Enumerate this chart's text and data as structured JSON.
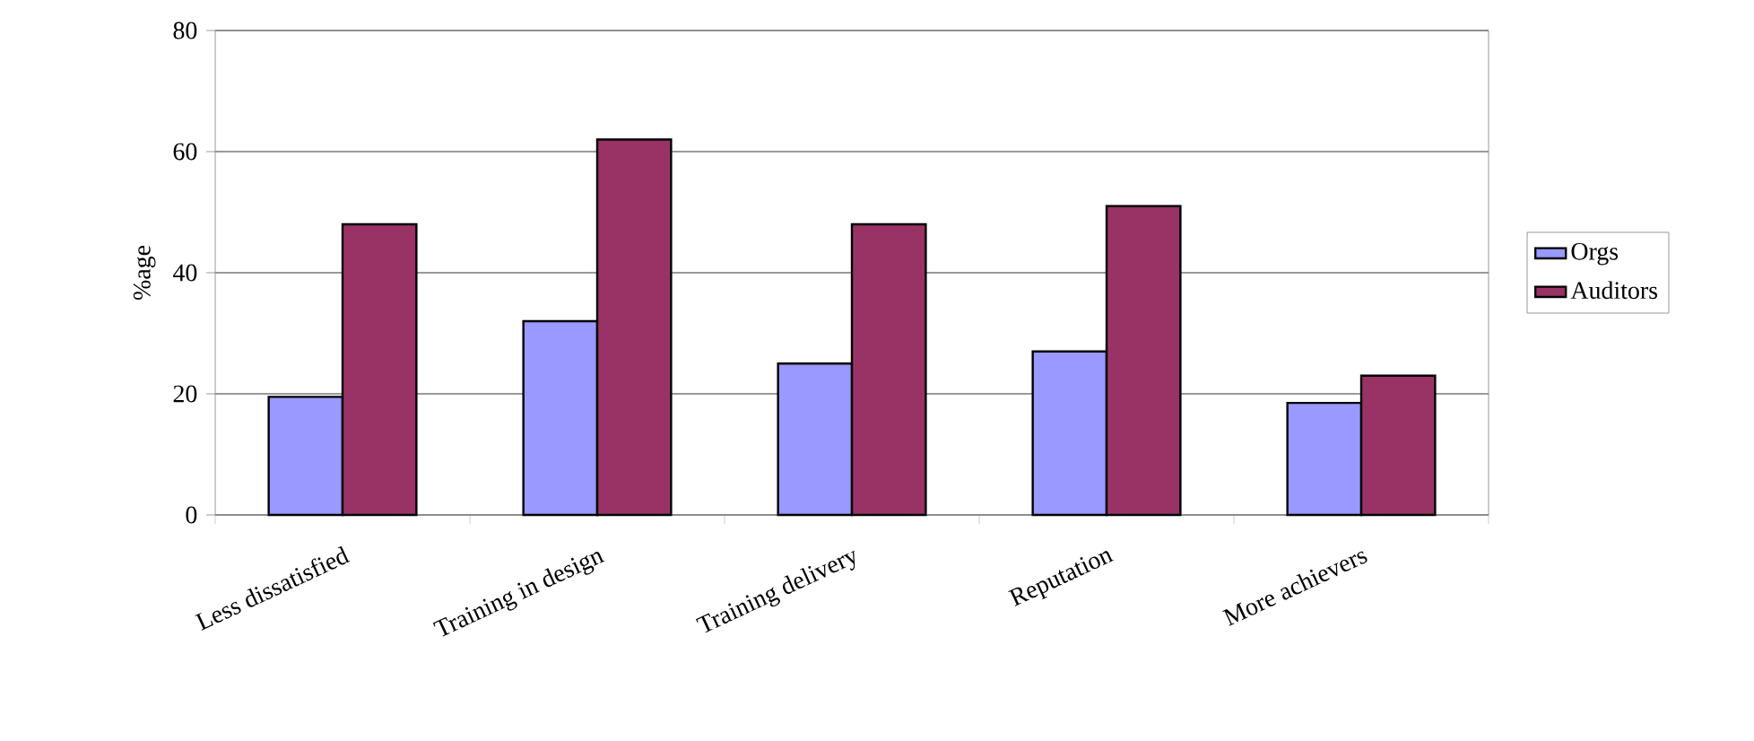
{
  "chart_data": {
    "type": "bar",
    "ylabel": "%age",
    "categories": [
      "Less dissatisfied",
      "Training in design",
      "Training delivery",
      "Reputation",
      "More achievers"
    ],
    "series": [
      {
        "name": "Orgs",
        "color": "#9999ff",
        "values": [
          19.5,
          32,
          25,
          27,
          18.5
        ]
      },
      {
        "name": "Auditors",
        "color": "#993366",
        "values": [
          48,
          62,
          48,
          51,
          23
        ]
      }
    ],
    "ylim": [
      0,
      80
    ],
    "yticks": [
      0,
      20,
      40,
      60,
      80
    ],
    "grid": "y",
    "legend": "right"
  }
}
